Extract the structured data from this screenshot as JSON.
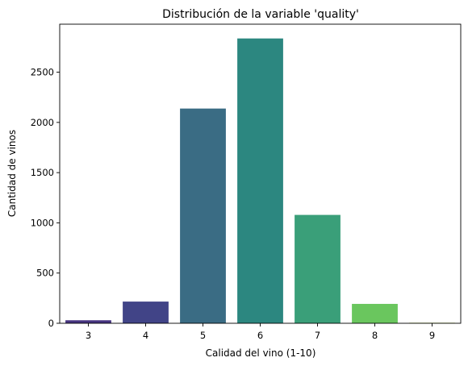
{
  "chart_data": {
    "type": "bar",
    "title": "Distribución de la variable 'quality'",
    "xlabel": "Calidad del vino (1-10)",
    "ylabel": "Cantidad de vinos",
    "categories": [
      "3",
      "4",
      "5",
      "6",
      "7",
      "8",
      "9"
    ],
    "values": [
      30,
      216,
      2138,
      2836,
      1079,
      193,
      5
    ],
    "ylim": [
      0,
      2978
    ],
    "yticks": [
      0,
      500,
      1000,
      1500,
      2000,
      2500
    ],
    "ytick_labels": [
      "0",
      "500",
      "1000",
      "1500",
      "2000",
      "2500"
    ],
    "grid": false,
    "legend": "none",
    "colors": [
      "#463480",
      "#414487",
      "#3a6c84",
      "#2c8780",
      "#3a9f79",
      "#6ac65e",
      "#aed23a"
    ]
  }
}
